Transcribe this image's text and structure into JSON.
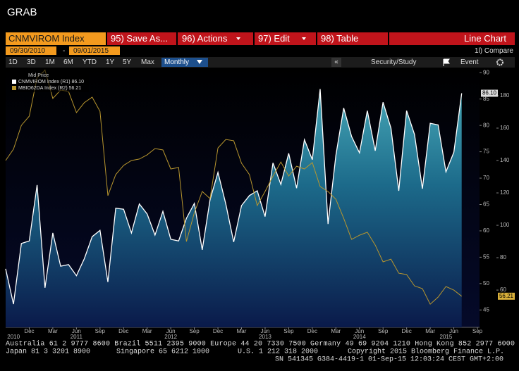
{
  "header": {
    "title": "GRAB"
  },
  "toolbar": {
    "security": "CNMVIROM Index",
    "buttons": [
      "95) Save As...",
      "96) Actions",
      "97) Edit",
      "98) Table"
    ],
    "view": "Line Chart",
    "start_date": "09/30/2010",
    "date_separator": "-",
    "end_date": "09/01/2015",
    "compare": "1l) Compare",
    "periods": [
      "1D",
      "3D",
      "1M",
      "6M",
      "YTD",
      "1Y",
      "5Y",
      "Max"
    ],
    "frequency": "Monthly",
    "collapse": "«",
    "study": "Security/Study",
    "event": "Event"
  },
  "chart_data": {
    "type": "line",
    "legend_title": "Mid Price",
    "x": [
      "2010-09",
      "2010-10",
      "2010-11",
      "2010-12",
      "2011-01",
      "2011-02",
      "2011-03",
      "2011-04",
      "2011-05",
      "2011-06",
      "2011-07",
      "2011-08",
      "2011-09",
      "2011-10",
      "2011-11",
      "2011-12",
      "2012-01",
      "2012-02",
      "2012-03",
      "2012-04",
      "2012-05",
      "2012-06",
      "2012-07",
      "2012-08",
      "2012-09",
      "2012-10",
      "2012-11",
      "2012-12",
      "2013-01",
      "2013-02",
      "2013-03",
      "2013-04",
      "2013-05",
      "2013-06",
      "2013-07",
      "2013-08",
      "2013-09",
      "2013-10",
      "2013-11",
      "2013-12",
      "2014-01",
      "2014-02",
      "2014-03",
      "2014-04",
      "2014-05",
      "2014-06",
      "2014-07",
      "2014-08",
      "2014-09",
      "2014-10",
      "2014-11",
      "2014-12",
      "2015-01",
      "2015-02",
      "2015-03",
      "2015-04",
      "2015-05",
      "2015-06",
      "2015-07"
    ],
    "series": [
      {
        "name": "CNMVIROM Index",
        "axis_label": "(R1)",
        "color": "#ffffff",
        "axis": "y",
        "area": true,
        "values": [
          52.8,
          46.1,
          57.6,
          58.1,
          68.7,
          49.2,
          59.6,
          53.3,
          53.6,
          51.5,
          54.7,
          58.9,
          60.1,
          50.3,
          64.3,
          64.1,
          59.6,
          65.1,
          63.2,
          59.2,
          63.7,
          58.4,
          58.1,
          62.4,
          65.2,
          56.4,
          65.9,
          71.1,
          65.1,
          57.9,
          64.8,
          66.7,
          67.6,
          62.7,
          72.9,
          68.8,
          74.7,
          68.1,
          77.3,
          73.5,
          86.9,
          61.3,
          74.3,
          83.3,
          77.9,
          74.8,
          82.8,
          75.2,
          84.4,
          79.5,
          67.6,
          82.8,
          78.3,
          68.0,
          80.4,
          80.1,
          71.2,
          74.9,
          86.1
        ],
        "last_label": "86.10",
        "last_color": "#dcdcdc"
      },
      {
        "name": "MBIO62DA Index",
        "axis_label": "(R2)",
        "color": "#b8962e",
        "axis": "y2",
        "values": [
          140.0,
          147.0,
          161.7,
          167.4,
          191.3,
          195.7,
          178.3,
          183.5,
          182.6,
          169.6,
          175.7,
          179.1,
          170.4,
          118.3,
          131.3,
          137.0,
          140.0,
          140.9,
          143.5,
          147.4,
          146.5,
          134.8,
          135.7,
          90.0,
          107.8,
          120.9,
          116.5,
          147.8,
          153.0,
          152.2,
          138.3,
          131.3,
          112.2,
          120.9,
          130.4,
          139.1,
          130.4,
          136.5,
          134.8,
          138.7,
          123.9,
          120.9,
          116.1,
          104.3,
          91.3,
          93.9,
          95.7,
          87.8,
          77.4,
          79.1,
          70.4,
          69.6,
          62.6,
          60.9,
          51.3,
          55.7,
          62.2,
          60.0,
          56.21
        ],
        "last_label": "56.21",
        "last_color": "#d9b03a"
      }
    ],
    "ylim": [
      41.7,
      90.7
    ],
    "yticks": [
      45,
      50,
      55,
      60,
      65,
      70,
      75,
      80,
      85,
      90
    ],
    "y2lim": [
      37,
      196.5
    ],
    "y2ticks": [
      60,
      80,
      100,
      120,
      140,
      160,
      180
    ],
    "xticks": [
      {
        "value": "2010-12",
        "label": "Dec"
      },
      {
        "value": "2011-03",
        "label": "Mar"
      },
      {
        "value": "2011-06",
        "label": "Jun"
      },
      {
        "value": "2011-09",
        "label": "Sep"
      },
      {
        "value": "2011-12",
        "label": "Dec"
      },
      {
        "value": "2012-03",
        "label": "Mar"
      },
      {
        "value": "2012-06",
        "label": "Jun"
      },
      {
        "value": "2012-09",
        "label": "Sep"
      },
      {
        "value": "2012-12",
        "label": "Dec"
      },
      {
        "value": "2013-03",
        "label": "Mar"
      },
      {
        "value": "2013-06",
        "label": "Jun"
      },
      {
        "value": "2013-09",
        "label": "Sep"
      },
      {
        "value": "2013-12",
        "label": "Dec"
      },
      {
        "value": "2014-03",
        "label": "Mar"
      },
      {
        "value": "2014-06",
        "label": "Jun"
      },
      {
        "value": "2014-09",
        "label": "Sep"
      },
      {
        "value": "2014-12",
        "label": "Dec"
      },
      {
        "value": "2015-03",
        "label": "Mar"
      },
      {
        "value": "2015-06",
        "label": "Jun"
      },
      {
        "value": "2015-09",
        "label": "Sep"
      }
    ],
    "year_labels": [
      {
        "value": "2010-10",
        "label": "2010"
      },
      {
        "value": "2011-06",
        "label": "2011"
      },
      {
        "value": "2012-06",
        "label": "2012"
      },
      {
        "value": "2013-06",
        "label": "2013"
      },
      {
        "value": "2014-06",
        "label": "2014"
      },
      {
        "value": "2015-05",
        "label": "2015"
      }
    ]
  },
  "footer": {
    "line1": "Australia 61 2 9777 8600 Brazil 5511 2395 9000 Europe 44 20 7330 7500 Germany 49 69 9204 1210 Hong Kong 852 2977 6000",
    "line2": [
      "Japan 81 3 3201 8900",
      "Singapore 65 6212 1000",
      "U.S. 1 212 318 2000",
      "Copyright 2015 Bloomberg Finance L.P."
    ],
    "line3": "SN 541345 G384-4419-1 01-Sep-15 12:03:24 CEST GMT+2:00"
  }
}
